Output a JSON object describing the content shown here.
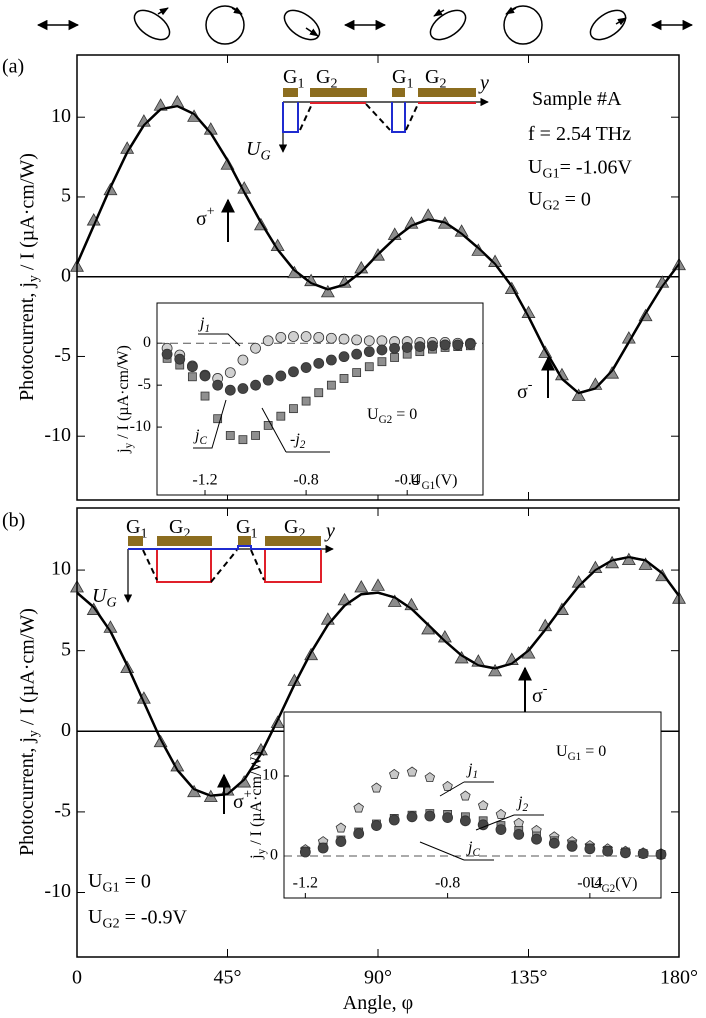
{
  "chart_data": [
    {
      "type": "line",
      "panel_label": "(a)",
      "ylabel": {
        "parts": [
          "Photocurrent, j",
          "y",
          " / I (µA·cm/W)"
        ]
      },
      "x": [
        0,
        5,
        10,
        15,
        20,
        25,
        30,
        35,
        40,
        45,
        50,
        55,
        60,
        65,
        70,
        75,
        80,
        85,
        90,
        95,
        100,
        105,
        110,
        115,
        120,
        125,
        130,
        135,
        140,
        145,
        150,
        155,
        160,
        165,
        170,
        175,
        180
      ],
      "xlim": [
        0,
        180
      ],
      "xticks": [
        0,
        45,
        90,
        135,
        180
      ],
      "xtick_labels": false,
      "ylim": [
        -14,
        13.9
      ],
      "yticks": [
        -10,
        -5,
        0,
        5,
        10
      ],
      "hline": 0,
      "series": [
        {
          "style": "line",
          "color": "#000000",
          "values": [
            0.8,
            3.2,
            5.6,
            7.8,
            9.5,
            10.5,
            10.7,
            10.2,
            9.0,
            7.3,
            5.3,
            3.4,
            1.7,
            0.4,
            -0.4,
            -0.8,
            -0.5,
            0.3,
            1.4,
            2.4,
            3.2,
            3.6,
            3.4,
            2.7,
            1.8,
            0.8,
            -0.6,
            -2.5,
            -4.6,
            -6.4,
            -7.3,
            -7.0,
            -5.9,
            -4.1,
            -2.3,
            -0.6,
            0.8
          ]
        },
        {
          "style": "marker",
          "marker": "triangle",
          "color": "#8c8c8c",
          "values": [
            0.6,
            3.5,
            5.4,
            8.0,
            9.7,
            10.7,
            10.9,
            10.0,
            9.2,
            7.0,
            5.5,
            3.2,
            1.9,
            0.2,
            -0.3,
            -1.0,
            -0.4,
            0.5,
            1.3,
            2.6,
            3.3,
            3.8,
            3.3,
            2.8,
            1.6,
            0.9,
            -0.8,
            -2.3,
            -4.8,
            -6.2,
            -7.5,
            -6.8,
            -6.1,
            -3.9,
            -2.5,
            -0.4,
            0.7
          ]
        }
      ],
      "annotations": [
        {
          "parts": [
            "Sample #A"
          ]
        },
        {
          "parts": [
            "f = 2.54 THz"
          ]
        },
        {
          "parts": [
            "U",
            "G1",
            "= -1.06V"
          ]
        },
        {
          "parts": [
            "U",
            "G2",
            " = 0"
          ]
        },
        {
          "parts": [
            "σ",
            "+"
          ],
          "sup": true
        },
        {
          "parts": [
            "σ",
            "-"
          ],
          "sup": true
        }
      ],
      "schematic": [
        {
          "parts": [
            "G",
            "1"
          ]
        },
        {
          "parts": [
            "G",
            "2"
          ]
        },
        {
          "parts": [
            "G",
            "1"
          ]
        },
        {
          "parts": [
            "G",
            "2"
          ]
        },
        {
          "parts": [
            "y"
          ]
        },
        {
          "parts": [
            "U",
            "G"
          ]
        }
      ]
    },
    {
      "type": "scatter",
      "ylabel": {
        "parts": [
          "j",
          "y",
          " / I (µA·cm/W)"
        ]
      },
      "xlabel": {
        "parts": [
          "U",
          "G1",
          "(V)"
        ]
      },
      "x": [
        -1.35,
        -1.3,
        -1.25,
        -1.2,
        -1.15,
        -1.1,
        -1.05,
        -1.0,
        -0.95,
        -0.9,
        -0.85,
        -0.8,
        -0.75,
        -0.7,
        -0.65,
        -0.6,
        -0.55,
        -0.5,
        -0.45,
        -0.4,
        -0.35,
        -0.3,
        -0.25,
        -0.2,
        -0.15
      ],
      "xlim": [
        -1.39,
        -0.1
      ],
      "xticks": [
        -1.2,
        -0.8,
        -0.4
      ],
      "ylim": [
        -18.1,
        4.8
      ],
      "yticks": [
        -10,
        -5,
        0
      ],
      "hline": 0,
      "series": [
        {
          "name": {
            "parts": [
              "j",
              "1"
            ]
          },
          "marker": "circle",
          "color": "#d0d0d0",
          "values": [
            -0.6,
            -1.4,
            -2.7,
            -3.8,
            -4.2,
            -3.5,
            -2.0,
            -0.6,
            0.3,
            0.7,
            0.8,
            0.8,
            0.7,
            0.6,
            0.5,
            0.4,
            0.3,
            0.3,
            0.2,
            0.2,
            0.1,
            0.1,
            0.1,
            0.0,
            0.0
          ]
        },
        {
          "name": {
            "parts": [
              "-j",
              "2"
            ]
          },
          "marker": "square",
          "color": "#8f8f8f",
          "values": [
            -1.8,
            -2.6,
            -4.0,
            -6.3,
            -9.0,
            -11.0,
            -11.5,
            -11.0,
            -9.8,
            -8.7,
            -7.8,
            -6.9,
            -5.9,
            -5.0,
            -4.2,
            -3.5,
            -2.8,
            -2.2,
            -1.7,
            -1.3,
            -1.0,
            -0.7,
            -0.5,
            -0.4,
            -0.3
          ]
        },
        {
          "name": {
            "parts": [
              "j",
              "C"
            ]
          },
          "marker": "circle",
          "color": "#454545",
          "values": [
            -1.3,
            -1.9,
            -2.8,
            -3.9,
            -5.0,
            -5.6,
            -5.4,
            -5.0,
            -4.4,
            -3.9,
            -3.4,
            -2.9,
            -2.4,
            -2.0,
            -1.6,
            -1.3,
            -1.0,
            -0.8,
            -0.6,
            -0.5,
            -0.4,
            -0.3,
            -0.2,
            -0.2,
            -0.1
          ]
        }
      ],
      "annotations": [
        {
          "parts": [
            "U",
            "G2",
            " = 0"
          ]
        }
      ]
    },
    {
      "type": "line",
      "panel_label": "(b)",
      "ylabel": {
        "parts": [
          "Photocurrent, j",
          "y",
          " / I (µA·cm/W)"
        ]
      },
      "xlabel": {
        "parts": [
          "Angle, φ"
        ]
      },
      "x": [
        0,
        5,
        10,
        15,
        20,
        25,
        30,
        35,
        40,
        45,
        50,
        55,
        60,
        65,
        70,
        75,
        80,
        85,
        90,
        95,
        100,
        105,
        110,
        115,
        120,
        125,
        130,
        135,
        140,
        145,
        150,
        155,
        160,
        165,
        170,
        175,
        180
      ],
      "xlim": [
        0,
        180
      ],
      "xticks": [
        0,
        {
          "value": 45,
          "label": "45°"
        },
        {
          "value": 90,
          "label": "90°"
        },
        {
          "value": 135,
          "label": "135°"
        },
        {
          "value": 180,
          "label": "180°"
        }
      ],
      "ylim": [
        -14,
        13.85
      ],
      "yticks": [
        -10,
        -5,
        0,
        5,
        10
      ],
      "hline": 0,
      "series": [
        {
          "style": "line",
          "color": "#000000",
          "values": [
            8.6,
            7.7,
            6.2,
            4.1,
            1.8,
            -0.5,
            -2.4,
            -3.6,
            -4.0,
            -3.9,
            -3.0,
            -1.4,
            0.7,
            2.9,
            4.9,
            6.6,
            7.8,
            8.5,
            8.6,
            8.3,
            7.6,
            6.6,
            5.6,
            4.7,
            4.1,
            3.9,
            4.2,
            5.0,
            6.3,
            7.7,
            9.0,
            10.0,
            10.6,
            10.8,
            10.6,
            9.8,
            8.4
          ]
        },
        {
          "style": "marker",
          "marker": "triangle",
          "color": "#8c8c8c",
          "values": [
            8.9,
            7.5,
            6.4,
            3.9,
            2.0,
            -0.7,
            -2.2,
            -3.8,
            -4.1,
            -3.7,
            -3.2,
            -1.2,
            0.5,
            3.1,
            4.7,
            6.9,
            8.1,
            8.9,
            9.0,
            8.0,
            7.8,
            6.3,
            5.8,
            4.5,
            4.3,
            3.7,
            4.4,
            4.8,
            6.5,
            7.5,
            9.2,
            10.1,
            10.4,
            10.6,
            10.3,
            9.6,
            8.2
          ]
        }
      ],
      "annotations": [
        {
          "parts": [
            "U",
            "G1",
            " = 0"
          ]
        },
        {
          "parts": [
            "U",
            "G2",
            " = -0.9V"
          ]
        },
        {
          "parts": [
            "σ",
            "+"
          ],
          "sup": true
        },
        {
          "parts": [
            "σ",
            "-"
          ],
          "sup": true
        }
      ],
      "schematic": [
        {
          "parts": [
            "G",
            "1"
          ]
        },
        {
          "parts": [
            "G",
            "2"
          ]
        },
        {
          "parts": [
            "G",
            "1"
          ]
        },
        {
          "parts": [
            "G",
            "2"
          ]
        },
        {
          "parts": [
            "y"
          ]
        },
        {
          "parts": [
            "U",
            "G"
          ]
        }
      ]
    },
    {
      "type": "scatter",
      "ylabel": {
        "parts": [
          "j",
          "y",
          " / I (µA·cm/W)"
        ]
      },
      "xlabel": {
        "parts": [
          "U",
          "G2",
          "(V)"
        ]
      },
      "x": [
        -1.2,
        -1.15,
        -1.1,
        -1.05,
        -1.0,
        -0.95,
        -0.9,
        -0.85,
        -0.8,
        -0.75,
        -0.7,
        -0.65,
        -0.6,
        -0.55,
        -0.5,
        -0.45,
        -0.4,
        -0.35,
        -0.3,
        -0.25,
        -0.2
      ],
      "xlim": [
        -1.26,
        -0.2
      ],
      "xticks": [
        -1.2,
        -0.8,
        -0.4
      ],
      "ylim": [
        -5.25,
        18
      ],
      "yticks": [
        0,
        10
      ],
      "hline": 0,
      "series": [
        {
          "name": {
            "parts": [
              "j",
              "1"
            ]
          },
          "marker": "pentagon",
          "color": "#c8c8c8",
          "values": [
            0.8,
            1.8,
            3.5,
            6.0,
            8.5,
            10.2,
            10.5,
            9.8,
            8.7,
            7.5,
            6.3,
            5.2,
            4.1,
            3.2,
            2.4,
            1.8,
            1.3,
            0.9,
            0.6,
            0.4,
            0.3
          ]
        },
        {
          "name": {
            "parts": [
              "j",
              "2"
            ]
          },
          "marker": "square",
          "color": "#8f8f8f",
          "values": [
            0.6,
            1.1,
            2.0,
            3.0,
            4.0,
            4.7,
            5.1,
            5.3,
            5.2,
            4.9,
            4.4,
            3.8,
            3.2,
            2.5,
            1.9,
            1.4,
            1.0,
            0.7,
            0.5,
            0.3,
            0.2
          ]
        },
        {
          "name": {
            "parts": [
              "j",
              "C"
            ]
          },
          "marker": "circle",
          "color": "#454545",
          "values": [
            0.5,
            1.0,
            1.8,
            2.8,
            3.8,
            4.5,
            4.9,
            5.0,
            4.8,
            4.4,
            3.9,
            3.3,
            2.7,
            2.1,
            1.6,
            1.2,
            0.9,
            0.6,
            0.4,
            0.3,
            0.2
          ]
        }
      ],
      "annotations": [
        {
          "parts": [
            "U",
            "G1",
            " = 0"
          ]
        }
      ]
    }
  ]
}
